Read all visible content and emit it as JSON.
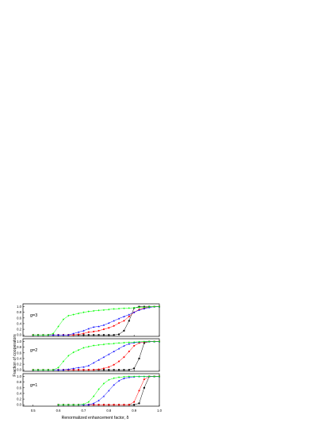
{
  "figure": {
    "xlabel": "Renormalized enhancement factor, δ",
    "ylabel": "Fraction of cooperators",
    "xlim": [
      0.46,
      1.0
    ],
    "xticks": [
      0.5,
      0.6,
      0.7,
      0.8,
      0.9,
      1.0
    ],
    "ylim": [
      -0.05,
      1.1
    ],
    "yticks": [
      0.0,
      0.2,
      0.4,
      0.6,
      0.8,
      1.0
    ],
    "colors": {
      "series1": "#000000",
      "series2": "#ff0000",
      "series3": "#0000ff",
      "series4": "#00ff00"
    }
  },
  "chart_data": [
    {
      "type": "scatter",
      "panel_label": "g=3",
      "x": [
        0.5,
        0.52,
        0.54,
        0.56,
        0.58,
        0.6,
        0.62,
        0.64,
        0.66,
        0.68,
        0.7,
        0.72,
        0.74,
        0.76,
        0.78,
        0.8,
        0.82,
        0.84,
        0.86,
        0.88,
        0.9,
        0.92,
        0.94,
        0.96,
        0.98,
        1.0
      ],
      "series": [
        {
          "values": [
            0,
            0,
            0,
            0,
            0,
            0,
            0,
            0,
            0,
            0,
            0,
            0,
            0,
            0,
            0,
            0,
            0,
            0.02,
            0.15,
            0.5,
            0.95,
            1.0,
            1.0,
            1.0,
            1.0,
            1.0
          ]
        },
        {
          "values": [
            0,
            0,
            0,
            0,
            0,
            0,
            0,
            0,
            0,
            0.02,
            0.05,
            0.1,
            0.12,
            0.15,
            0.2,
            0.25,
            0.32,
            0.42,
            0.5,
            0.65,
            0.8,
            0.9,
            0.95,
            0.98,
            1.0,
            1.0
          ]
        },
        {
          "values": [
            0,
            0,
            0,
            0,
            0,
            0,
            0,
            0,
            0.05,
            0.1,
            0.15,
            0.22,
            0.28,
            0.3,
            0.35,
            0.42,
            0.5,
            0.58,
            0.65,
            0.72,
            0.8,
            0.88,
            0.93,
            0.97,
            1.0,
            1.0
          ]
        },
        {
          "values": [
            0,
            0,
            0,
            0,
            0.05,
            0.3,
            0.55,
            0.68,
            0.72,
            0.76,
            0.8,
            0.83,
            0.85,
            0.87,
            0.88,
            0.9,
            0.92,
            0.93,
            0.94,
            0.95,
            0.96,
            0.97,
            0.98,
            0.99,
            1.0,
            1.0
          ]
        }
      ]
    },
    {
      "type": "scatter",
      "panel_label": "g=2",
      "x": [
        0.5,
        0.52,
        0.54,
        0.56,
        0.58,
        0.6,
        0.62,
        0.64,
        0.66,
        0.68,
        0.7,
        0.72,
        0.74,
        0.76,
        0.78,
        0.8,
        0.82,
        0.84,
        0.86,
        0.88,
        0.9,
        0.92,
        0.94,
        0.96,
        0.98,
        1.0
      ],
      "series": [
        {
          "values": [
            0,
            0,
            0,
            0,
            0,
            0,
            0,
            0,
            0,
            0,
            0,
            0,
            0,
            0,
            0,
            0,
            0,
            0,
            0,
            0,
            0.05,
            0.4,
            0.95,
            1.0,
            1.0,
            1.0
          ]
        },
        {
          "values": [
            0,
            0,
            0,
            0,
            0,
            0,
            0,
            0,
            0,
            0,
            0,
            0,
            0,
            0.02,
            0.05,
            0.1,
            0.18,
            0.3,
            0.45,
            0.65,
            0.85,
            0.95,
            0.98,
            1.0,
            1.0,
            1.0
          ]
        },
        {
          "values": [
            0,
            0,
            0,
            0,
            0,
            0,
            0,
            0.02,
            0.05,
            0.08,
            0.1,
            0.15,
            0.25,
            0.35,
            0.45,
            0.55,
            0.65,
            0.75,
            0.85,
            0.92,
            0.96,
            0.98,
            1.0,
            1.0,
            1.0,
            1.0
          ]
        },
        {
          "values": [
            0,
            0,
            0,
            0,
            0,
            0.08,
            0.3,
            0.5,
            0.62,
            0.7,
            0.78,
            0.82,
            0.86,
            0.88,
            0.9,
            0.92,
            0.93,
            0.95,
            0.96,
            0.97,
            0.98,
            0.99,
            1.0,
            1.0,
            1.0,
            1.0
          ]
        }
      ]
    },
    {
      "type": "scatter",
      "panel_label": "g=1",
      "x": [
        0.6,
        0.62,
        0.64,
        0.66,
        0.68,
        0.7,
        0.72,
        0.74,
        0.76,
        0.78,
        0.8,
        0.82,
        0.84,
        0.86,
        0.88,
        0.9,
        0.92,
        0.94,
        0.96,
        0.98,
        1.0
      ],
      "series": [
        {
          "values": [
            0,
            0,
            0,
            0,
            0,
            0,
            0,
            0,
            0,
            0,
            0,
            0,
            0,
            0,
            0,
            0,
            0.05,
            0.6,
            1.0,
            1.0,
            1.0
          ]
        },
        {
          "values": [
            0,
            0,
            0,
            0,
            0,
            0,
            0,
            0,
            0,
            0,
            0,
            0,
            0,
            0,
            0,
            0.1,
            0.5,
            0.9,
            1.0,
            1.0,
            1.0
          ]
        },
        {
          "values": [
            0,
            0,
            0,
            0,
            0,
            0,
            0,
            0.05,
            0.15,
            0.3,
            0.5,
            0.7,
            0.85,
            0.93,
            0.97,
            0.99,
            1.0,
            1.0,
            1.0,
            1.0,
            1.0
          ]
        },
        {
          "values": [
            0,
            0,
            0,
            0,
            0,
            0.02,
            0.1,
            0.3,
            0.55,
            0.75,
            0.88,
            0.94,
            0.97,
            0.99,
            1.0,
            1.0,
            1.0,
            1.0,
            1.0,
            1.0,
            1.0
          ]
        }
      ]
    }
  ]
}
